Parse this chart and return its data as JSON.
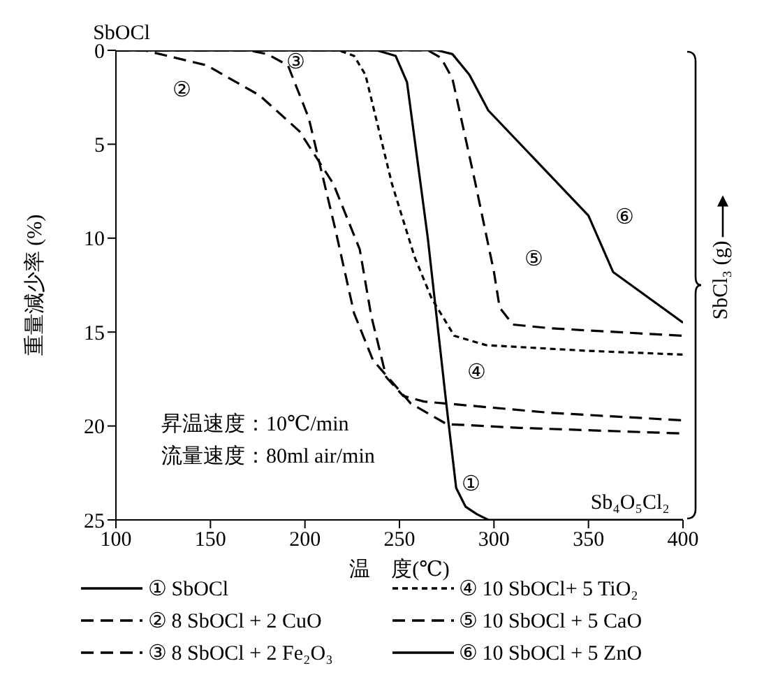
{
  "chart_data": {
    "type": "line",
    "xlabel": "温　度(℃)",
    "ylabel": "重量減少率 (%)",
    "y2label": "SbCl₃ (g)",
    "xlim": [
      100,
      400
    ],
    "xticks": [
      100,
      150,
      200,
      250,
      300,
      350,
      400
    ],
    "ylim": [
      25,
      0
    ],
    "yticks": [
      0,
      5,
      10,
      15,
      20,
      25
    ],
    "grid": false,
    "legend": "bottom",
    "marker": "none",
    "series": [
      {
        "name": "① SbOCl",
        "color": "#000000",
        "line_style": "solid",
        "x": [
          100,
          238,
          248,
          254,
          265,
          275,
          280,
          285,
          291,
          297,
          400
        ],
        "values": [
          0,
          0,
          0.3,
          1.7,
          10,
          19,
          23.3,
          24.3,
          24.7,
          25,
          25
        ]
      },
      {
        "name": "② 8 SbOCl + 2 CuO",
        "color": "#000000",
        "line_style": "dashed",
        "x": [
          100,
          115,
          148,
          176,
          197,
          215,
          229,
          235,
          243,
          252,
          263,
          330,
          400
        ],
        "values": [
          0,
          0,
          0.8,
          2.4,
          4.3,
          7.1,
          10.6,
          14.1,
          17.4,
          18.4,
          18.7,
          19.3,
          19.7
        ]
      },
      {
        "name": "③ 8 SbOCl + 2 Fe₂O₃",
        "color": "#000000",
        "line_style": "dashed",
        "x": [
          100,
          170,
          180,
          191,
          202,
          216,
          226,
          236,
          256,
          275,
          314,
          400
        ],
        "values": [
          0,
          0,
          0.2,
          0.8,
          3.6,
          9.5,
          14,
          16.5,
          18.8,
          19.9,
          20.1,
          20.4
        ]
      },
      {
        "name": "④ 10 SbOCl+ 5 TiO₂",
        "color": "#000000",
        "line_style": "dotted",
        "x": [
          100,
          218,
          226,
          232,
          246,
          258,
          267,
          279,
          296,
          350,
          400
        ],
        "values": [
          0,
          0,
          0.3,
          1.3,
          7.1,
          11,
          13.2,
          15.2,
          15.7,
          16,
          16.2
        ]
      },
      {
        "name": "⑤ 10 SbOCl + 5 CaO",
        "color": "#000000",
        "line_style": "dashed",
        "x": [
          100,
          265,
          272,
          278,
          290,
          300,
          303,
          310,
          330,
          400
        ],
        "values": [
          0,
          0,
          0.4,
          1.5,
          7,
          11.8,
          13.7,
          14.6,
          14.8,
          15.2
        ]
      },
      {
        "name": "⑥ 10 SbOCl + 5 ZnO",
        "color": "#000000",
        "line_style": "solid",
        "x": [
          100,
          270,
          278,
          287,
          297,
          350,
          363,
          400
        ],
        "values": [
          0,
          0,
          0.2,
          1.3,
          3.2,
          8.8,
          11.8,
          14.5
        ]
      }
    ],
    "annotations": [
      {
        "text": "SbOCl",
        "x": 100,
        "y": 0
      },
      "昇温速度：10℃/min",
      "流量速度：80ml air/min",
      {
        "text": "Sb₄O₅Cl₂",
        "x": 372,
        "y": 25
      },
      "①",
      "②",
      "③",
      "④",
      "⑤",
      "⑥"
    ]
  }
}
